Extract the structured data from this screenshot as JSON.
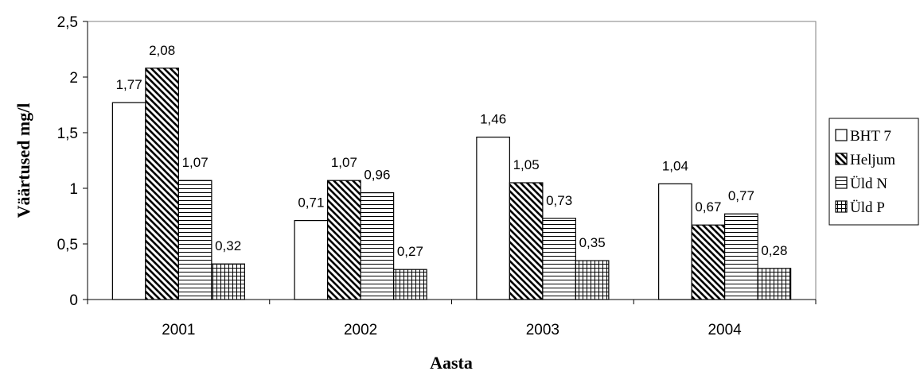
{
  "chart_data": {
    "type": "bar",
    "title": "",
    "xlabel": "Aasta",
    "ylabel": "Väärtused mg/l",
    "categories": [
      "2001",
      "2002",
      "2003",
      "2004"
    ],
    "ylim": [
      0,
      2.5
    ],
    "yticks": [
      0,
      0.5,
      1,
      1.5,
      2,
      2.5
    ],
    "ytick_labels": [
      "0",
      "0,5",
      "1",
      "1,5",
      "2",
      "2,5"
    ],
    "grid": false,
    "legend_position": "right",
    "series": [
      {
        "name": "BHT 7",
        "pattern": "blank",
        "values": [
          1.77,
          0.71,
          1.46,
          1.04
        ],
        "labels": [
          "1,77",
          "0,71",
          "1,46",
          "1,04"
        ]
      },
      {
        "name": "Heljum",
        "pattern": "diagonal",
        "values": [
          2.08,
          1.07,
          1.05,
          0.67
        ],
        "labels": [
          "2,08",
          "1,07",
          "1,05",
          "0,67"
        ]
      },
      {
        "name": "Üld N",
        "pattern": "horizontal",
        "values": [
          1.07,
          0.96,
          0.73,
          0.77
        ],
        "labels": [
          "1,07",
          "0,96",
          "0,73",
          "0,77"
        ]
      },
      {
        "name": "Üld P",
        "pattern": "grid",
        "values": [
          0.32,
          0.27,
          0.35,
          0.28
        ],
        "labels": [
          "0,32",
          "0,27",
          "0,35",
          "0,28"
        ]
      }
    ],
    "colors": {
      "stroke": "#000000",
      "fill": "#ffffff",
      "plot_border": "#808080"
    }
  }
}
